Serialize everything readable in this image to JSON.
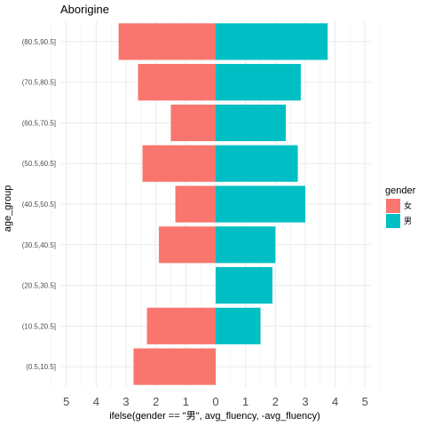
{
  "chart_data": {
    "type": "bar",
    "orientation": "horizontal",
    "title": "Aborigine",
    "xlabel": "ifelse(gender == \"男\", avg_fluency, -avg_fluency)",
    "ylabel": "age_group",
    "categories": [
      "(0.5,10.5]",
      "(10.5,20.5]",
      "(20.5,30.5]",
      "(30.5,40.5]",
      "(40.5,50.5]",
      "(50.5,60.5]",
      "(60.5,70.5]",
      "(70.5,80.5]",
      "(80.5,90.5]"
    ],
    "x_tick_labels": [
      "5",
      "4",
      "3",
      "2",
      "1",
      "0",
      "1",
      "2",
      "3",
      "4",
      "5"
    ],
    "xlim": [
      -5.2,
      5.2
    ],
    "grid": true,
    "legend": {
      "title": "gender",
      "position": "right"
    },
    "series": [
      {
        "name": "女",
        "color": "#F8766D",
        "values": [
          -2.75,
          -2.3,
          null,
          -1.9,
          -1.35,
          -2.45,
          -1.5,
          -2.6,
          -3.25
        ]
      },
      {
        "name": "男",
        "color": "#00BFC4",
        "values": [
          null,
          1.5,
          1.9,
          2.0,
          3.0,
          2.75,
          2.35,
          2.85,
          3.75
        ]
      }
    ]
  }
}
